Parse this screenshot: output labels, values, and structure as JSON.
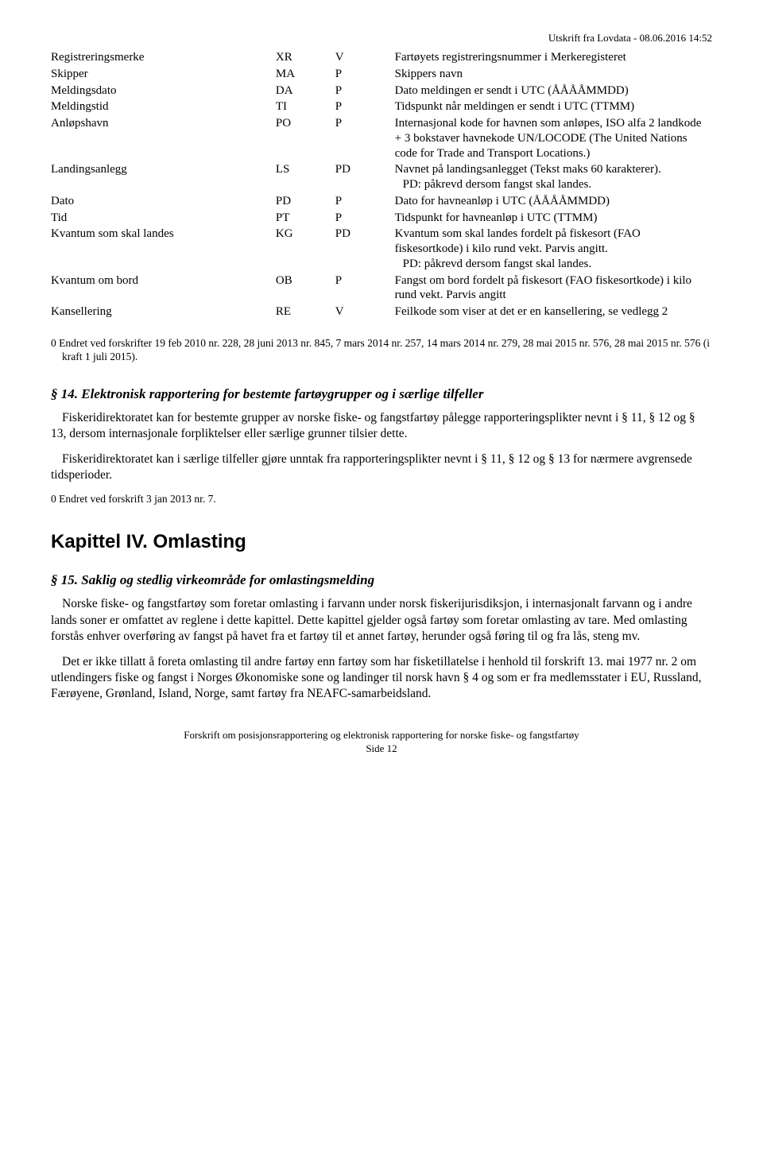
{
  "header": "Utskrift fra Lovdata - 08.06.2016 14:52",
  "table": {
    "rows": [
      {
        "label": "Registreringsmerke",
        "c2": "XR",
        "c3": "V",
        "desc": "Fartøyets registreringsnummer i Merkeregisteret"
      },
      {
        "label": "Skipper",
        "c2": "MA",
        "c3": "P",
        "desc": "Skippers navn"
      },
      {
        "label": "Meldingsdato",
        "c2": "DA",
        "c3": "P",
        "desc": "Dato meldingen er sendt i UTC (ÅÅÅÅMMDD)"
      },
      {
        "label": "Meldingstid",
        "c2": "TI",
        "c3": "P",
        "desc": "Tidspunkt når meldingen er sendt i UTC (TTMM)"
      },
      {
        "label": "Anløpshavn",
        "c2": "PO",
        "c3": "P",
        "desc": "Internasjonal kode for havnen som anløpes, ISO  alfa 2 landkode + 3 bokstaver havnekode UN/LOCODE (The United Nations code for  Trade and Transport Locations.)"
      },
      {
        "label": "Landingsanlegg",
        "c2": "LS",
        "c3": "PD",
        "desc": "Navnet på landingsanlegget (Tekst maks 60  karakterer).",
        "desc2": "PD: påkrevd dersom fangst skal landes."
      },
      {
        "label": "Dato",
        "c2": "PD",
        "c3": "P",
        "desc": "Dato for havneanløp i UTC (ÅÅÅÅMMDD)"
      },
      {
        "label": "Tid",
        "c2": "PT",
        "c3": "P",
        "desc": "Tidspunkt for havneanløp i UTC (TTMM)"
      },
      {
        "label": "Kvantum som skal landes",
        "c2": "KG",
        "c3": "PD",
        "desc": "Kvantum som skal landes fordelt på fiskesort (FAO fiskesortkode) i kilo rund vekt. Parvis angitt.",
        "desc2": "PD: påkrevd dersom fangst skal landes."
      },
      {
        "label": "Kvantum om bord",
        "c2": "OB",
        "c3": "P",
        "desc": "Fangst om bord fordelt på fiskesort (FAO  fiskesortkode) i kilo rund vekt. Parvis angitt"
      },
      {
        "label": "Kansellering",
        "c2": "RE",
        "c3": "V",
        "desc": "Feilkode som viser at det er en kansellering, se  vedlegg 2"
      }
    ]
  },
  "footnote1": "0 Endret ved forskrifter 19 feb 2010 nr. 228, 28 juni 2013 nr. 845, 7 mars 2014 nr. 257, 14 mars 2014 nr. 279, 28 mai 2015 nr. 576, 28 mai 2015 nr. 576 (i kraft 1 juli 2015).",
  "sec14": {
    "title": "§ 14. Elektronisk rapportering for bestemte fartøygrupper og i særlige tilfeller",
    "p1": "Fiskeridirektoratet kan for bestemte grupper av norske fiske- og fangstfartøy pålegge rapporteringsplikter nevnt i § 11, § 12 og § 13, dersom internasjonale forpliktelser eller særlige grunner tilsier dette.",
    "p2": "Fiskeridirektoratet kan i særlige tilfeller gjøre unntak fra rapporteringsplikter nevnt i § 11, § 12 og § 13 for nærmere avgrensede tidsperioder.",
    "note": "0 Endret ved forskrift 3 jan 2013 nr. 7."
  },
  "chapter": "Kapittel IV. Omlasting",
  "sec15": {
    "title": "§ 15. Saklig og stedlig virkeområde for omlastingsmelding",
    "p1": "Norske fiske- og fangstfartøy som foretar omlasting i farvann under norsk fiskerijurisdiksjon, i internasjonalt farvann og i andre lands soner er omfattet av reglene i dette kapittel. Dette kapittel gjelder også fartøy som foretar omlasting av tare. Med omlasting forstås enhver overføring av fangst på havet fra et fartøy til et annet fartøy, herunder også føring til og fra lås, steng mv.",
    "p2": "Det er ikke tillatt å foreta omlasting til andre fartøy enn fartøy som har fisketillatelse i henhold til forskrift 13. mai 1977 nr. 2 om utlendingers fiske og fangst i Norges Økonomiske sone og landinger til norsk havn § 4 og som er fra medlemsstater i EU, Russland, Færøyene, Grønland, Island, Norge, samt fartøy fra NEAFC-samarbeidsland."
  },
  "footer": {
    "line1": "Forskrift om posisjonsrapportering og elektronisk rapportering for norske fiske- og fangstfartøy",
    "line2": "Side 12"
  }
}
